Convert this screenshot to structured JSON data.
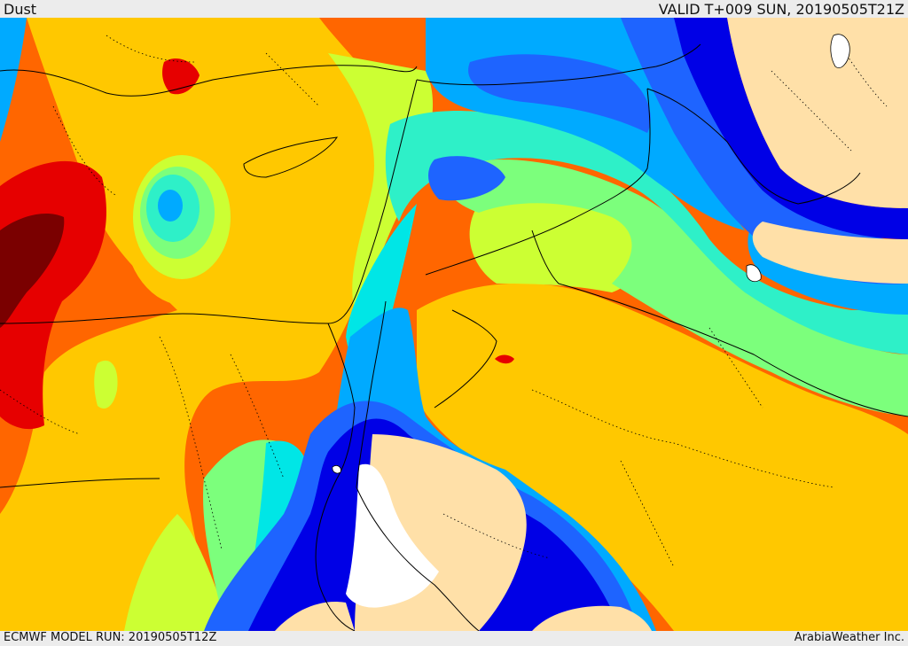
{
  "header": {
    "title": "Dust",
    "valid_time": "VALID T+009 SUN, 20190505T21Z"
  },
  "footer": {
    "model_run": "ECMWF MODEL RUN: 20190505T12Z",
    "credit": "ArabiaWeather Inc."
  },
  "colors": {
    "land_no_data": "#ffe0a8",
    "sea_no_data": "#ffffff",
    "level_darkblue": "#0000e6",
    "level_blue": "#1e64ff",
    "level_skyblue": "#00aaff",
    "level_cyan": "#00e6e6",
    "level_aqua": "#2ef0c8",
    "level_green": "#7cff7c",
    "level_yellowgreen": "#ccff33",
    "level_yellow": "#ffc800",
    "level_orange": "#ff6600",
    "level_red": "#e60000",
    "level_darkred": "#7a0000"
  }
}
